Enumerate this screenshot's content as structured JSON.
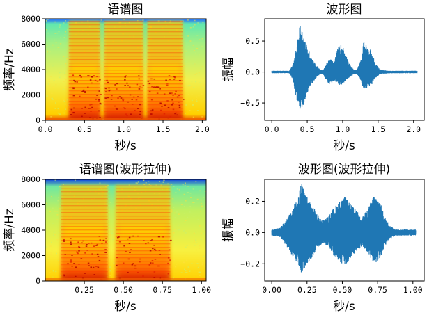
{
  "chart_data": [
    {
      "type": "heatmap",
      "title": "语谱图",
      "xlabel": "秒/s",
      "ylabel": "频率/Hz",
      "xlim": [
        0.0,
        2.05
      ],
      "ylim": [
        0,
        8000
      ],
      "xticks": [
        0.0,
        0.5,
        1.0,
        1.5,
        2.0
      ],
      "xtick_labels": [
        "0.0",
        "0.5",
        "1.0",
        "1.5",
        "2.0"
      ],
      "yticks": [
        0,
        2000,
        4000,
        6000,
        8000
      ],
      "ytick_labels": [
        "0",
        "2000",
        "4000",
        "6000",
        "8000"
      ],
      "colormap": "jet",
      "energy_regions_s": [
        [
          0.3,
          0.7
        ],
        [
          0.75,
          1.25
        ],
        [
          1.3,
          1.75
        ]
      ]
    },
    {
      "type": "line",
      "title": "波形图",
      "xlabel": "秒/s",
      "ylabel": "振幅",
      "xlim": [
        -0.1,
        2.15
      ],
      "ylim": [
        -0.78,
        0.86
      ],
      "xticks": [
        0.0,
        0.5,
        1.0,
        1.5,
        2.0
      ],
      "xtick_labels": [
        "0.0",
        "0.5",
        "1.0",
        "1.5",
        "2.0"
      ],
      "yticks": [
        -0.5,
        0.0,
        0.5
      ],
      "ytick_labels": [
        "−0.5",
        "0.0",
        "0.5"
      ],
      "color": "#1f77b4",
      "envelope": {
        "t": [
          0.0,
          0.25,
          0.3,
          0.34,
          0.4,
          0.44,
          0.5,
          0.56,
          0.62,
          0.68,
          0.72,
          0.78,
          0.82,
          0.88,
          0.92,
          0.96,
          1.0,
          1.04,
          1.1,
          1.16,
          1.2,
          1.26,
          1.3,
          1.36,
          1.4,
          1.46,
          1.52,
          1.58,
          1.65,
          1.7,
          2.05
        ],
        "upper": [
          0.02,
          0.02,
          0.12,
          0.35,
          0.79,
          0.65,
          0.4,
          0.25,
          0.12,
          0.04,
          0.03,
          0.15,
          0.22,
          0.16,
          0.35,
          0.46,
          0.43,
          0.3,
          0.12,
          0.04,
          0.03,
          0.2,
          0.52,
          0.38,
          0.36,
          0.14,
          0.05,
          0.03,
          0.02,
          0.02,
          0.02
        ],
        "lower": [
          -0.02,
          -0.02,
          -0.14,
          -0.4,
          -0.7,
          -0.58,
          -0.35,
          -0.2,
          -0.1,
          -0.04,
          -0.03,
          -0.16,
          -0.2,
          -0.15,
          -0.18,
          -0.22,
          -0.2,
          -0.14,
          -0.08,
          -0.04,
          -0.03,
          -0.14,
          -0.3,
          -0.24,
          -0.22,
          -0.1,
          -0.04,
          -0.03,
          -0.02,
          -0.02,
          -0.02
        ]
      }
    },
    {
      "type": "heatmap",
      "title": "语谱图(波形拉伸)",
      "xlabel": "秒/s",
      "ylabel": "频率/Hz",
      "xlim": [
        0.0,
        1.03
      ],
      "ylim": [
        0,
        8000
      ],
      "xticks": [
        0.25,
        0.5,
        0.75,
        1.0
      ],
      "xtick_labels": [
        "0.25",
        "0.50",
        "0.75",
        "1.00"
      ],
      "yticks": [
        0,
        2000,
        4000,
        6000,
        8000
      ],
      "ytick_labels": [
        "0",
        "2000",
        "4000",
        "6000",
        "8000"
      ],
      "colormap": "jet",
      "energy_regions_s": [
        [
          0.1,
          0.4
        ],
        [
          0.45,
          0.8
        ]
      ]
    },
    {
      "type": "line",
      "title": "波形图(波形拉伸)",
      "xlabel": "秒/s",
      "ylabel": "振幅",
      "xlim": [
        -0.05,
        1.08
      ],
      "ylim": [
        -0.31,
        0.34
      ],
      "xticks": [
        0.0,
        0.25,
        0.5,
        0.75,
        1.0
      ],
      "xtick_labels": [
        "0.00",
        "0.25",
        "0.50",
        "0.75",
        "1.00"
      ],
      "yticks": [
        -0.2,
        0.0,
        0.2
      ],
      "ytick_labels": [
        "−0.2",
        "0.0",
        "0.2"
      ],
      "color": "#1f77b4",
      "envelope": {
        "t": [
          0.0,
          0.06,
          0.1,
          0.14,
          0.18,
          0.21,
          0.24,
          0.28,
          0.32,
          0.36,
          0.4,
          0.44,
          0.48,
          0.52,
          0.56,
          0.6,
          0.64,
          0.68,
          0.72,
          0.76,
          0.8,
          0.84,
          0.88,
          1.02
        ],
        "upper": [
          0.02,
          0.03,
          0.08,
          0.14,
          0.22,
          0.32,
          0.24,
          0.19,
          0.12,
          0.08,
          0.1,
          0.16,
          0.2,
          0.23,
          0.18,
          0.14,
          0.1,
          0.15,
          0.24,
          0.22,
          0.1,
          0.04,
          0.02,
          0.02
        ],
        "lower": [
          -0.02,
          -0.03,
          -0.08,
          -0.14,
          -0.2,
          -0.27,
          -0.22,
          -0.17,
          -0.1,
          -0.07,
          -0.09,
          -0.15,
          -0.19,
          -0.22,
          -0.17,
          -0.12,
          -0.09,
          -0.13,
          -0.2,
          -0.18,
          -0.09,
          -0.04,
          -0.02,
          -0.02
        ]
      }
    }
  ]
}
